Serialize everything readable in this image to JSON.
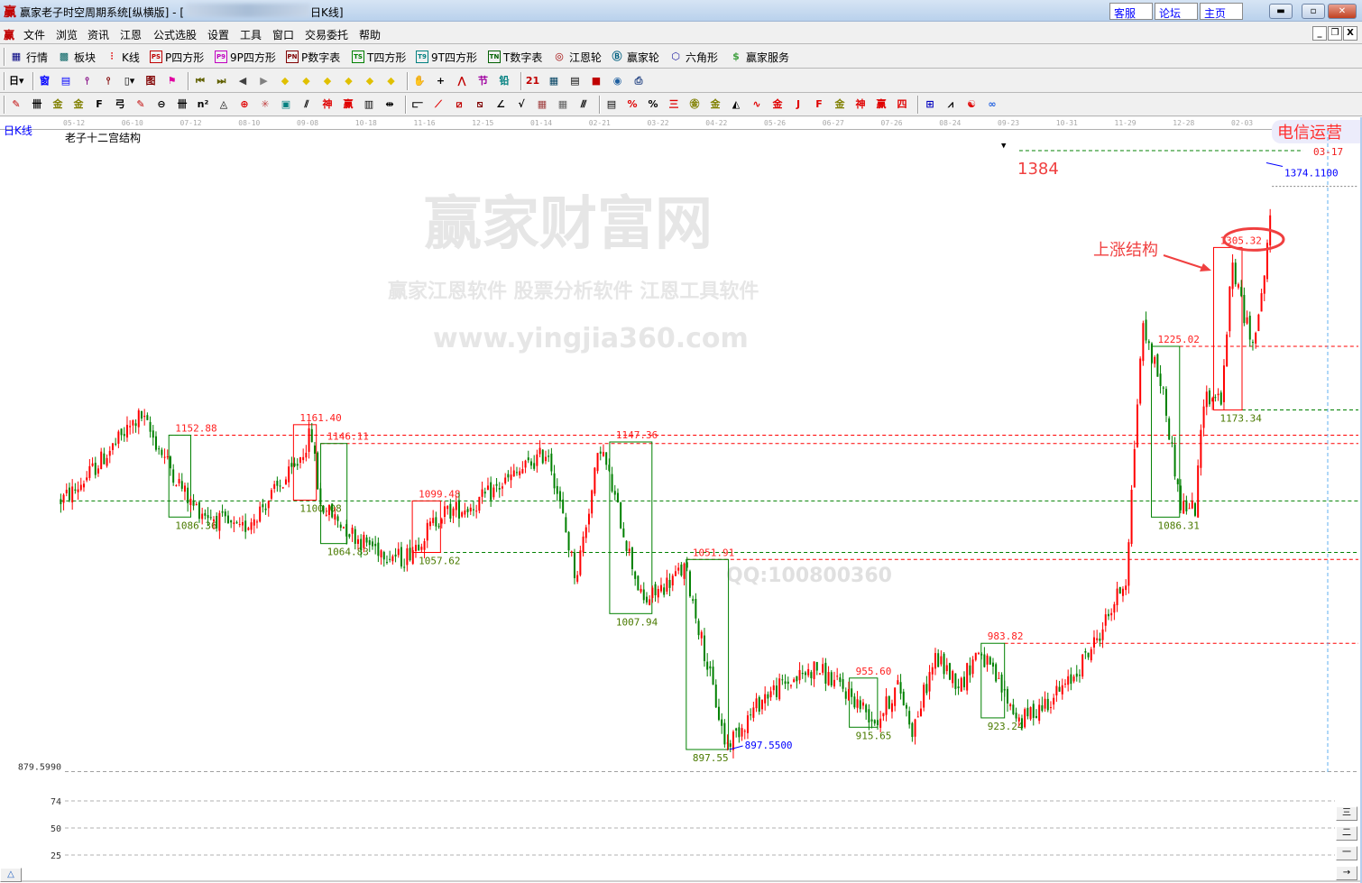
{
  "window": {
    "title": "赢家老子时空周期系统[纵横版] - [",
    "title_suffix": "日K线]",
    "links": [
      "客服",
      "论坛",
      "主页"
    ],
    "controls": [
      "minimize",
      "maximize",
      "close"
    ]
  },
  "menu": {
    "items": [
      "文件",
      "浏览",
      "资讯",
      "江恩",
      "公式选股",
      "设置",
      "工具",
      "窗口",
      "交易委托",
      "帮助"
    ]
  },
  "toolbar1": [
    {
      "label": "行情",
      "icon": "▦",
      "color": "#000080",
      "name": "quotes"
    },
    {
      "label": "板块",
      "icon": "▩",
      "color": "#006060",
      "name": "sectors"
    },
    {
      "label": "K线",
      "icon": "⫶",
      "color": "#e00000",
      "name": "kline"
    },
    {
      "label": "P四方形",
      "icon": "PS",
      "color": "#c00000",
      "name": "p-square",
      "box": true
    },
    {
      "label": "9P四方形",
      "icon": "P9",
      "color": "#c000c0",
      "name": "9p-square",
      "box": true
    },
    {
      "label": "P数字表",
      "icon": "PN",
      "color": "#800000",
      "name": "p-number-table",
      "box": true
    },
    {
      "label": "T四方形",
      "icon": "TS",
      "color": "#008000",
      "name": "t-square",
      "box": true
    },
    {
      "label": "9T四方形",
      "icon": "T9",
      "color": "#008080",
      "name": "9t-square",
      "box": true
    },
    {
      "label": "T数字表",
      "icon": "TN",
      "color": "#006000",
      "name": "t-number-table",
      "box": true
    },
    {
      "label": "江恩轮",
      "icon": "◎",
      "color": "#a00000",
      "name": "gann-wheel"
    },
    {
      "label": "赢家轮",
      "icon": "Ⓑ",
      "color": "#006080",
      "name": "winner-wheel"
    },
    {
      "label": "六角形",
      "icon": "⬡",
      "color": "#2020a0",
      "name": "hexagon"
    },
    {
      "label": "赢家服务",
      "icon": "$",
      "color": "#40a040",
      "name": "winner-service"
    }
  ],
  "toolbar2": [
    {
      "icon": "日▾",
      "color": "#000",
      "name": "period-dropdown"
    },
    {
      "sep": true
    },
    {
      "icon": "窗",
      "color": "#0000ff",
      "name": "window"
    },
    {
      "icon": "▤",
      "color": "#0000ff",
      "name": "clipboard"
    },
    {
      "icon": "⫯",
      "color": "#800080",
      "name": "bar-3"
    },
    {
      "icon": "⫯",
      "color": "#800000",
      "name": "bar-9"
    },
    {
      "icon": "▯▾",
      "color": "#000",
      "name": "candle-style"
    },
    {
      "icon": "图",
      "color": "#800000",
      "name": "pattern"
    },
    {
      "icon": "⚑",
      "color": "#e000a0",
      "name": "flag"
    },
    {
      "sep": true
    },
    {
      "icon": "⏮",
      "color": "#606000",
      "name": "first"
    },
    {
      "icon": "⏭",
      "color": "#606000",
      "name": "last"
    },
    {
      "icon": "◀",
      "color": "#404040",
      "name": "prev"
    },
    {
      "icon": "▶",
      "color": "#808080",
      "name": "next"
    },
    {
      "icon": "◆",
      "color": "#e0c000",
      "name": "diamond-left"
    },
    {
      "icon": "◆",
      "color": "#e0c000",
      "name": "diamond-right"
    },
    {
      "icon": "◆",
      "color": "#e0c000",
      "name": "diamond-expand"
    },
    {
      "icon": "◆",
      "color": "#e0c000",
      "name": "diamond-shrink"
    },
    {
      "icon": "◆",
      "color": "#e0c000",
      "name": "diamond-zoom-in"
    },
    {
      "icon": "◆",
      "color": "#e0c000",
      "name": "diamond-zoom-out"
    },
    {
      "sep": true
    },
    {
      "icon": "✋",
      "color": "#000",
      "name": "hand"
    },
    {
      "icon": "+",
      "color": "#000",
      "name": "crosshair"
    },
    {
      "icon": "⋀",
      "color": "#c00000",
      "name": "line-draw"
    },
    {
      "icon": "节",
      "color": "#a000a0",
      "name": "festival"
    },
    {
      "icon": "铅",
      "color": "#008080",
      "name": "pencil"
    },
    {
      "sep": true
    },
    {
      "icon": "21",
      "color": "#c00000",
      "name": "calendar"
    },
    {
      "icon": "▦",
      "color": "#004060",
      "name": "calculator"
    },
    {
      "icon": "▤",
      "color": "#000",
      "name": "document"
    },
    {
      "icon": "■",
      "color": "#c00000",
      "name": "save"
    },
    {
      "icon": "◉",
      "color": "#2060a0",
      "name": "globe"
    },
    {
      "icon": "⎙",
      "color": "#204080",
      "name": "print"
    }
  ],
  "toolbar3": [
    {
      "icon": "✎",
      "color": "#c00000",
      "name": "pen"
    },
    {
      "icon": "卌",
      "color": "#000",
      "name": "cycle-lines"
    },
    {
      "icon": "金",
      "color": "#808000",
      "name": "gold-1"
    },
    {
      "icon": "金",
      "color": "#808000",
      "name": "gold-2"
    },
    {
      "icon": "F",
      "color": "#000",
      "name": "fibonacci"
    },
    {
      "icon": "弓",
      "color": "#000",
      "name": "spiral"
    },
    {
      "icon": "✎",
      "color": "#c00000",
      "name": "pen-ruler"
    },
    {
      "icon": "⊖",
      "color": "#000",
      "name": "circle-ruler"
    },
    {
      "icon": "卌",
      "color": "#000",
      "name": "time-lines"
    },
    {
      "icon": "n²",
      "color": "#000",
      "name": "square-series"
    },
    {
      "icon": "◬",
      "color": "#000",
      "name": "triangle"
    },
    {
      "icon": "⊕",
      "color": "#e00000",
      "name": "target"
    },
    {
      "icon": "✳",
      "color": "#c04040",
      "name": "web"
    },
    {
      "icon": "▣",
      "color": "#008080",
      "name": "web-square"
    },
    {
      "icon": "⫽",
      "color": "#000",
      "name": "parallel"
    },
    {
      "icon": "神",
      "color": "#e00000",
      "name": "god"
    },
    {
      "icon": "赢",
      "color": "#e00000",
      "name": "winner"
    },
    {
      "icon": "▥",
      "color": "#000",
      "name": "ruler-123"
    },
    {
      "icon": "⇹",
      "color": "#000",
      "name": "measure"
    },
    {
      "sep": true
    },
    {
      "icon": "⫍",
      "color": "#000",
      "name": "box-tool"
    },
    {
      "icon": "⟋",
      "color": "#e00000",
      "name": "fan-1"
    },
    {
      "icon": "⧄",
      "color": "#c00000",
      "name": "fan-2"
    },
    {
      "icon": "⧅",
      "color": "#800000",
      "name": "fan-3"
    },
    {
      "icon": "∠",
      "color": "#000",
      "name": "angle"
    },
    {
      "icon": "√",
      "color": "#000",
      "name": "v-line"
    },
    {
      "icon": "▦",
      "color": "#a04040",
      "name": "grid-1"
    },
    {
      "icon": "▦",
      "color": "#606060",
      "name": "grid-2"
    },
    {
      "icon": "⫻",
      "color": "#000",
      "name": "slashes"
    },
    {
      "sep": true
    },
    {
      "icon": "▤",
      "color": "#000",
      "name": "table"
    },
    {
      "icon": "%",
      "color": "#e00000",
      "name": "percent-1"
    },
    {
      "icon": "%",
      "color": "#000",
      "name": "percent-2"
    },
    {
      "icon": "三",
      "color": "#e00000",
      "name": "percent-lines"
    },
    {
      "icon": "㊎",
      "color": "#808000",
      "name": "gold-circle"
    },
    {
      "icon": "金",
      "color": "#808000",
      "name": "gold-lines"
    },
    {
      "icon": "◭",
      "color": "#000",
      "name": "pillar"
    },
    {
      "icon": "∿",
      "color": "#e00000",
      "name": "wave"
    },
    {
      "icon": "金",
      "color": "#e00000",
      "name": "gold-red"
    },
    {
      "icon": "J",
      "color": "#e00000",
      "name": "j-fan"
    },
    {
      "icon": "F",
      "color": "#e00000",
      "name": "f-fan"
    },
    {
      "icon": "金",
      "color": "#808000",
      "name": "gold-fan"
    },
    {
      "icon": "神",
      "color": "#e00000",
      "name": "god-fan"
    },
    {
      "icon": "赢",
      "color": "#e00000",
      "name": "winner-fan"
    },
    {
      "icon": "四",
      "color": "#e00000",
      "name": "four-fan"
    },
    {
      "sep": true
    },
    {
      "icon": "⊞",
      "color": "#0000c0",
      "name": "grid-chart"
    },
    {
      "icon": "⩘",
      "color": "#000",
      "name": "line-chart"
    },
    {
      "icon": "☯",
      "color": "#e00000",
      "name": "taiji"
    },
    {
      "icon": "∞",
      "color": "#2060e0",
      "name": "infinity"
    }
  ],
  "chart_header": {
    "period_label": "日K线",
    "indicator_name": "老子十二宫结构",
    "overlay_text": "电信运营"
  },
  "chart_data": {
    "type": "candlestick",
    "x_ticks": [
      "05-12",
      "06-10",
      "07-12",
      "08-10",
      "09-08",
      "10-18",
      "11-16",
      "12-15",
      "01-14",
      "02-21",
      "03-22",
      "04-22",
      "05-26",
      "06-27",
      "07-26",
      "08-24",
      "09-23",
      "10-31",
      "11-29",
      "12-28",
      "02-03"
    ],
    "price_axis_label": "879.5990",
    "price_axis_value": 879.599,
    "price_path": [
      {
        "date": "05-05",
        "price": 1100
      },
      {
        "date": "05-12",
        "price": 1108
      },
      {
        "date": "06-14",
        "price": 1169
      },
      {
        "date": "07-12",
        "price": 1096
      },
      {
        "date": "08-05",
        "price": 1074
      },
      {
        "date": "09-01",
        "price": 1125
      },
      {
        "date": "09-10",
        "price": 1155
      },
      {
        "date": "09-16",
        "price": 1096
      },
      {
        "date": "10-14",
        "price": 1067
      },
      {
        "date": "11-05",
        "price": 1052
      },
      {
        "date": "11-24",
        "price": 1089
      },
      {
        "date": "12-10",
        "price": 1096
      },
      {
        "date": "01-18",
        "price": 1140
      },
      {
        "date": "02-05",
        "price": 1037
      },
      {
        "date": "02-21",
        "price": 1145
      },
      {
        "date": "03-14",
        "price": 1016
      },
      {
        "date": "04-05",
        "price": 1045
      },
      {
        "date": "04-27",
        "price": 900
      },
      {
        "date": "05-20",
        "price": 942
      },
      {
        "date": "06-17",
        "price": 964
      },
      {
        "date": "07-05",
        "price": 942
      },
      {
        "date": "07-18",
        "price": 920
      },
      {
        "date": "07-29",
        "price": 950
      },
      {
        "date": "08-05",
        "price": 913
      },
      {
        "date": "08-16",
        "price": 972
      },
      {
        "date": "08-29",
        "price": 950
      },
      {
        "date": "09-07",
        "price": 979
      },
      {
        "date": "09-30",
        "price": 920
      },
      {
        "date": "10-31",
        "price": 950
      },
      {
        "date": "11-14",
        "price": 986
      },
      {
        "date": "11-29",
        "price": 1037
      },
      {
        "date": "12-07",
        "price": 1242
      },
      {
        "date": "12-17",
        "price": 1191
      },
      {
        "date": "12-26",
        "price": 1096
      },
      {
        "date": "01-04",
        "price": 1093
      },
      {
        "date": "01-09",
        "price": 1184
      },
      {
        "date": "01-21",
        "price": 1184
      },
      {
        "date": "01-27",
        "price": 1294
      },
      {
        "date": "02-08",
        "price": 1228
      },
      {
        "date": "02-15",
        "price": 1264
      },
      {
        "date": "02-20",
        "price": 1330
      },
      {
        "date": "02-22",
        "price": 1356
      }
    ],
    "boxes": [
      {
        "from": "06-30",
        "to": "07-12",
        "high": 1152.88,
        "low": 1086.36,
        "high_label": "1152.88",
        "low_label": "1086.36",
        "color": "#008000"
      },
      {
        "from": "09-01",
        "to": "09-14",
        "high": 1161.4,
        "low": 1100.08,
        "high_label": "1161.40",
        "low_label": "1100.08",
        "color": "#ff0000"
      },
      {
        "from": "09-17",
        "to": "10-05",
        "high": 1146.11,
        "low": 1064.83,
        "high_label": "1146.11",
        "low_label": "1064.83",
        "color": "#008000"
      },
      {
        "from": "11-10",
        "to": "11-24",
        "high": 1099.48,
        "low": 1057.62,
        "high_label": "1099.48",
        "low_label": "1057.62",
        "color": "#ff0000"
      },
      {
        "from": "02-26",
        "to": "03-19",
        "high": 1147.36,
        "low": 1007.94,
        "high_label": "1147.36",
        "low_label": "1007.94",
        "color": "#008000"
      },
      {
        "from": "04-06",
        "to": "04-29",
        "high": 1051.91,
        "low": 897.55,
        "high_label": "1051.91",
        "low_label": "897.55",
        "color": "#008000"
      },
      {
        "from": "07-05",
        "to": "07-19",
        "high": 955.6,
        "low": 915.65,
        "high_label": "955.60",
        "low_label": "915.65",
        "color": "#008000"
      },
      {
        "from": "09-09",
        "to": "09-21",
        "high": 983.82,
        "low": 923.24,
        "high_label": "983.82",
        "low_label": "923.24",
        "color": "#008000"
      },
      {
        "from": "12-12",
        "to": "12-26",
        "high": 1225.02,
        "low": 1086.31,
        "high_label": "1225.02",
        "low_label": "1086.31",
        "color": "#008000"
      },
      {
        "from": "01-16",
        "to": "02-03",
        "high": 1305.32,
        "low": 1173.34,
        "high_label": "1305.32",
        "low_label": "1173.34",
        "color": "#ff0000"
      }
    ],
    "levels": [
      {
        "from": "05-05",
        "price": 1099.48,
        "color": "#008000"
      },
      {
        "from": "06-30",
        "price": 1152.88,
        "color": "#ff0000"
      },
      {
        "from": "09-17",
        "price": 1146.11,
        "color": "#ff0000"
      },
      {
        "from": "11-10",
        "price": 1057.62,
        "color": "#008000"
      },
      {
        "from": "04-06",
        "price": 1051.91,
        "color": "#ff0000"
      },
      {
        "from": "09-21",
        "price": 983.82,
        "color": "#ff0000"
      },
      {
        "from": "09-30",
        "price": 1384,
        "color": "#008000"
      },
      {
        "from": "12-26",
        "price": 1225.02,
        "color": "#ff0000"
      },
      {
        "from": "02-03",
        "price": 1173.34,
        "color": "#008000"
      },
      {
        "from": "02-22",
        "price": 1355,
        "color": "#808080"
      }
    ],
    "high_marker": {
      "date": "02-19",
      "price": 1374.11,
      "label": "1374.1100"
    },
    "low_marker": {
      "date": "04-29",
      "price": 897.55,
      "label": "897.5500"
    },
    "annotations": {
      "target_label": "1384",
      "date_label": "03-17",
      "structure_label": "上涨结构",
      "circled_level": 1305.32
    },
    "colors": {
      "up": "#ff0000",
      "down": "#008000"
    }
  },
  "lower_panel": {
    "levels": [
      "74",
      "50",
      "25"
    ],
    "buttons": [
      "三",
      "二",
      "一",
      "→"
    ]
  },
  "watermark": {
    "main": "赢家财富网",
    "line2": "赢家江恩软件 股票分析软件 江恩工具软件",
    "url": "www.yingjia360.com",
    "qq": "QQ:100800360"
  }
}
